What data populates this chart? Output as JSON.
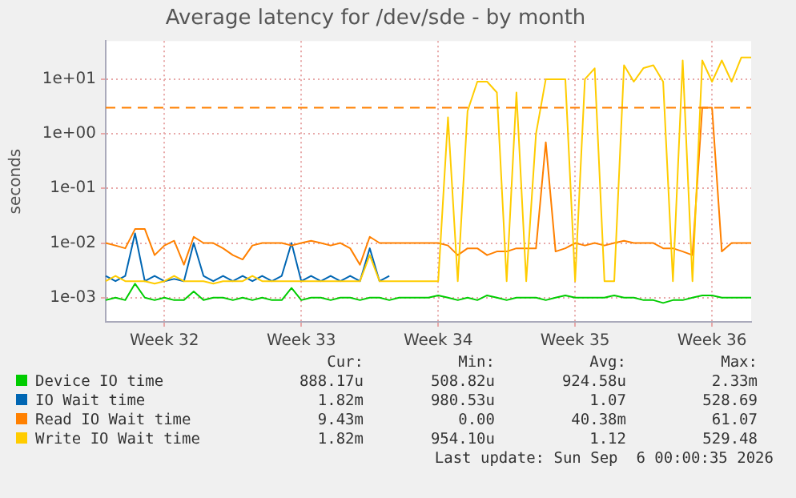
{
  "chart_data": {
    "type": "line",
    "title": "Average latency for /dev/sde - by month",
    "ylabel": "seconds",
    "log": "y",
    "grid": true,
    "legend": "bottom",
    "marker": "none",
    "line_style": "solid",
    "categories": [
      null,
      null,
      null,
      null,
      null,
      null,
      "Week 32",
      null,
      null,
      null,
      null,
      null,
      null,
      null,
      null,
      null,
      null,
      null,
      null,
      null,
      "Week 33",
      null,
      null,
      null,
      null,
      null,
      null,
      null,
      null,
      null,
      null,
      null,
      null,
      null,
      "Week 34",
      null,
      null,
      null,
      null,
      null,
      null,
      null,
      null,
      null,
      null,
      null,
      null,
      null,
      "Week 35",
      null,
      null,
      null,
      null,
      null,
      null,
      null,
      null,
      null,
      null,
      null,
      null,
      null,
      "Week 36",
      null,
      null,
      null,
      null
    ],
    "ylim": [
      0.00036,
      50
    ],
    "yticks": [
      {
        "value": 0.001,
        "label": "1e-03"
      },
      {
        "value": 0.01,
        "label": "1e-02"
      },
      {
        "value": 0.1,
        "label": "1e-01"
      },
      {
        "value": 1,
        "label": "1e+00"
      },
      {
        "value": 10,
        "label": "1e+01"
      }
    ],
    "ref_lines": [
      {
        "axis": "y",
        "value": 3,
        "color": "#ff8000",
        "line_style": "dashed"
      }
    ],
    "series": [
      {
        "name": "Device IO time",
        "color": "#00cc00",
        "values": [
          0.0009,
          0.001,
          0.0009,
          0.0018,
          0.001,
          0.0009,
          0.001,
          0.0009,
          0.0009,
          0.0013,
          0.0009,
          0.001,
          0.001,
          0.0009,
          0.001,
          0.0009,
          0.001,
          0.0009,
          0.0009,
          0.0015,
          0.0009,
          0.001,
          0.001,
          0.0009,
          0.001,
          0.001,
          0.0009,
          0.001,
          0.001,
          0.0009,
          0.001,
          0.001,
          0.001,
          0.001,
          0.0011,
          0.001,
          0.0009,
          0.001,
          0.0009,
          0.0011,
          0.001,
          0.0009,
          0.001,
          0.001,
          0.001,
          0.0009,
          0.001,
          0.0011,
          0.001,
          0.001,
          0.001,
          0.001,
          0.0011,
          0.001,
          0.001,
          0.0009,
          0.0009,
          0.0008,
          0.0009,
          0.0009,
          0.001,
          0.0011,
          0.0011,
          0.001,
          0.001,
          0.001,
          0.001
        ]
      },
      {
        "name": "IO Wait time",
        "color": "#0066b3",
        "values": [
          0.0025,
          0.002,
          0.0025,
          0.015,
          0.002,
          0.0025,
          0.002,
          0.0022,
          0.002,
          0.01,
          0.0025,
          0.002,
          0.0025,
          0.002,
          0.0025,
          0.002,
          0.0025,
          0.002,
          0.0025,
          0.01,
          0.002,
          0.0025,
          0.002,
          0.0025,
          0.002,
          0.0025,
          0.002,
          0.008,
          0.002,
          0.0025,
          null,
          null,
          null,
          null,
          null,
          null,
          null,
          null,
          null,
          null,
          null,
          null,
          null,
          null,
          null,
          null,
          null,
          null,
          null,
          null,
          null,
          null,
          null,
          null,
          null,
          null,
          null,
          null,
          null,
          null,
          null,
          null,
          null,
          null,
          null,
          null,
          null
        ]
      },
      {
        "name": "Read IO Wait time",
        "color": "#ff8000",
        "values": [
          0.01,
          0.009,
          0.008,
          0.018,
          0.018,
          0.006,
          0.009,
          0.011,
          0.004,
          0.013,
          0.01,
          0.01,
          0.008,
          0.006,
          0.005,
          0.009,
          0.01,
          0.01,
          0.01,
          0.009,
          0.01,
          0.011,
          0.01,
          0.009,
          0.01,
          0.008,
          0.004,
          0.013,
          0.01,
          0.01,
          0.01,
          0.01,
          0.01,
          0.01,
          0.01,
          0.009,
          0.006,
          0.008,
          0.008,
          0.006,
          0.007,
          0.007,
          0.008,
          0.008,
          0.008,
          0.7,
          0.007,
          0.008,
          0.01,
          0.009,
          0.01,
          0.009,
          0.01,
          0.011,
          0.01,
          0.01,
          0.01,
          0.008,
          0.008,
          0.007,
          0.006,
          3,
          3,
          0.007,
          0.01,
          0.01,
          0.01
        ]
      },
      {
        "name": "Write IO Wait time",
        "color": "#ffcc00",
        "values": [
          0.002,
          0.0025,
          0.002,
          0.002,
          0.002,
          0.0018,
          0.002,
          0.0025,
          0.002,
          0.002,
          0.002,
          0.0018,
          0.002,
          0.002,
          0.002,
          0.0025,
          0.002,
          0.002,
          0.002,
          0.002,
          0.002,
          0.002,
          0.002,
          0.002,
          0.002,
          0.002,
          0.002,
          0.006,
          0.002,
          0.002,
          0.002,
          0.002,
          0.002,
          0.002,
          0.002,
          2,
          0.002,
          2.6,
          9,
          9,
          5.7,
          0.002,
          5.7,
          0.002,
          1,
          10,
          10,
          10,
          0.002,
          10,
          15.8,
          0.002,
          0.002,
          18,
          9,
          16,
          18,
          9,
          0.002,
          22,
          0.002,
          22,
          9,
          22,
          9,
          25,
          25
        ]
      }
    ],
    "annotations": [
      "Cur:",
      "Min:",
      "Avg:",
      "Max:",
      "888.17u",
      "508.82u",
      "924.58u",
      "2.33m",
      "1.82m",
      "980.53u",
      "1.07",
      "528.69",
      "9.43m",
      "0.00",
      "40.38m",
      "61.07",
      "1.82m",
      "954.10u",
      "1.12",
      "529.48",
      "Last update: Sun Sep  6 00:00:35 2026"
    ]
  }
}
